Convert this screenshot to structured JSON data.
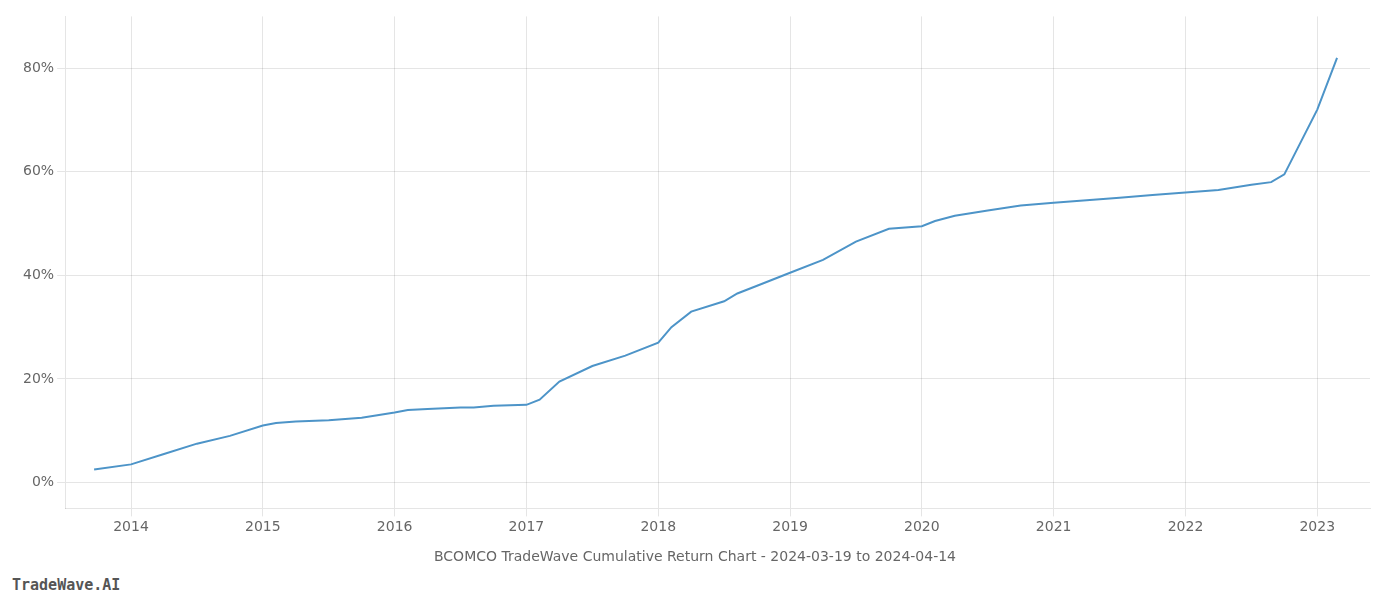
{
  "chart_data": {
    "type": "line",
    "title": "BCOMCO TradeWave Cumulative Return Chart - 2024-03-19 to 2024-04-14",
    "annotations": [
      "TradeWave.AI"
    ],
    "color": "#4d94c8",
    "grid": true,
    "x": [
      2013.72,
      2014.0,
      2014.25,
      2014.5,
      2014.75,
      2015.0,
      2015.1,
      2015.25,
      2015.5,
      2015.75,
      2016.0,
      2016.1,
      2016.25,
      2016.5,
      2016.6,
      2016.75,
      2017.0,
      2017.1,
      2017.25,
      2017.5,
      2017.75,
      2018.0,
      2018.1,
      2018.25,
      2018.5,
      2018.6,
      2018.75,
      2019.0,
      2019.25,
      2019.5,
      2019.75,
      2020.0,
      2020.1,
      2020.25,
      2020.5,
      2020.75,
      2021.0,
      2021.25,
      2021.5,
      2021.75,
      2022.0,
      2022.25,
      2022.5,
      2022.65,
      2022.75,
      2023.0,
      2023.15
    ],
    "values": [
      2.5,
      3.5,
      5.5,
      7.5,
      9.0,
      11.0,
      11.5,
      11.8,
      12.0,
      12.5,
      13.5,
      14.0,
      14.2,
      14.5,
      14.5,
      14.8,
      15.0,
      16.0,
      19.5,
      22.5,
      24.5,
      27.0,
      30.0,
      33.0,
      35.0,
      36.5,
      38.0,
      40.5,
      43.0,
      46.5,
      49.0,
      49.5,
      50.5,
      51.5,
      52.5,
      53.5,
      54.0,
      54.5,
      55.0,
      55.5,
      56.0,
      56.5,
      57.5,
      58.0,
      59.5,
      72.0,
      82.0
    ],
    "xlim": [
      2013.5,
      2023.4
    ],
    "xticks": [
      2014,
      2015,
      2016,
      2017,
      2018,
      2019,
      2020,
      2021,
      2022,
      2023
    ],
    "ylim": [
      -5,
      90
    ],
    "yticks": [
      {
        "value": 0,
        "label": "0%"
      },
      {
        "value": 20,
        "label": "20%"
      },
      {
        "value": 40,
        "label": "40%"
      },
      {
        "value": 60,
        "label": "60%"
      },
      {
        "value": 80,
        "label": "80%"
      }
    ]
  }
}
